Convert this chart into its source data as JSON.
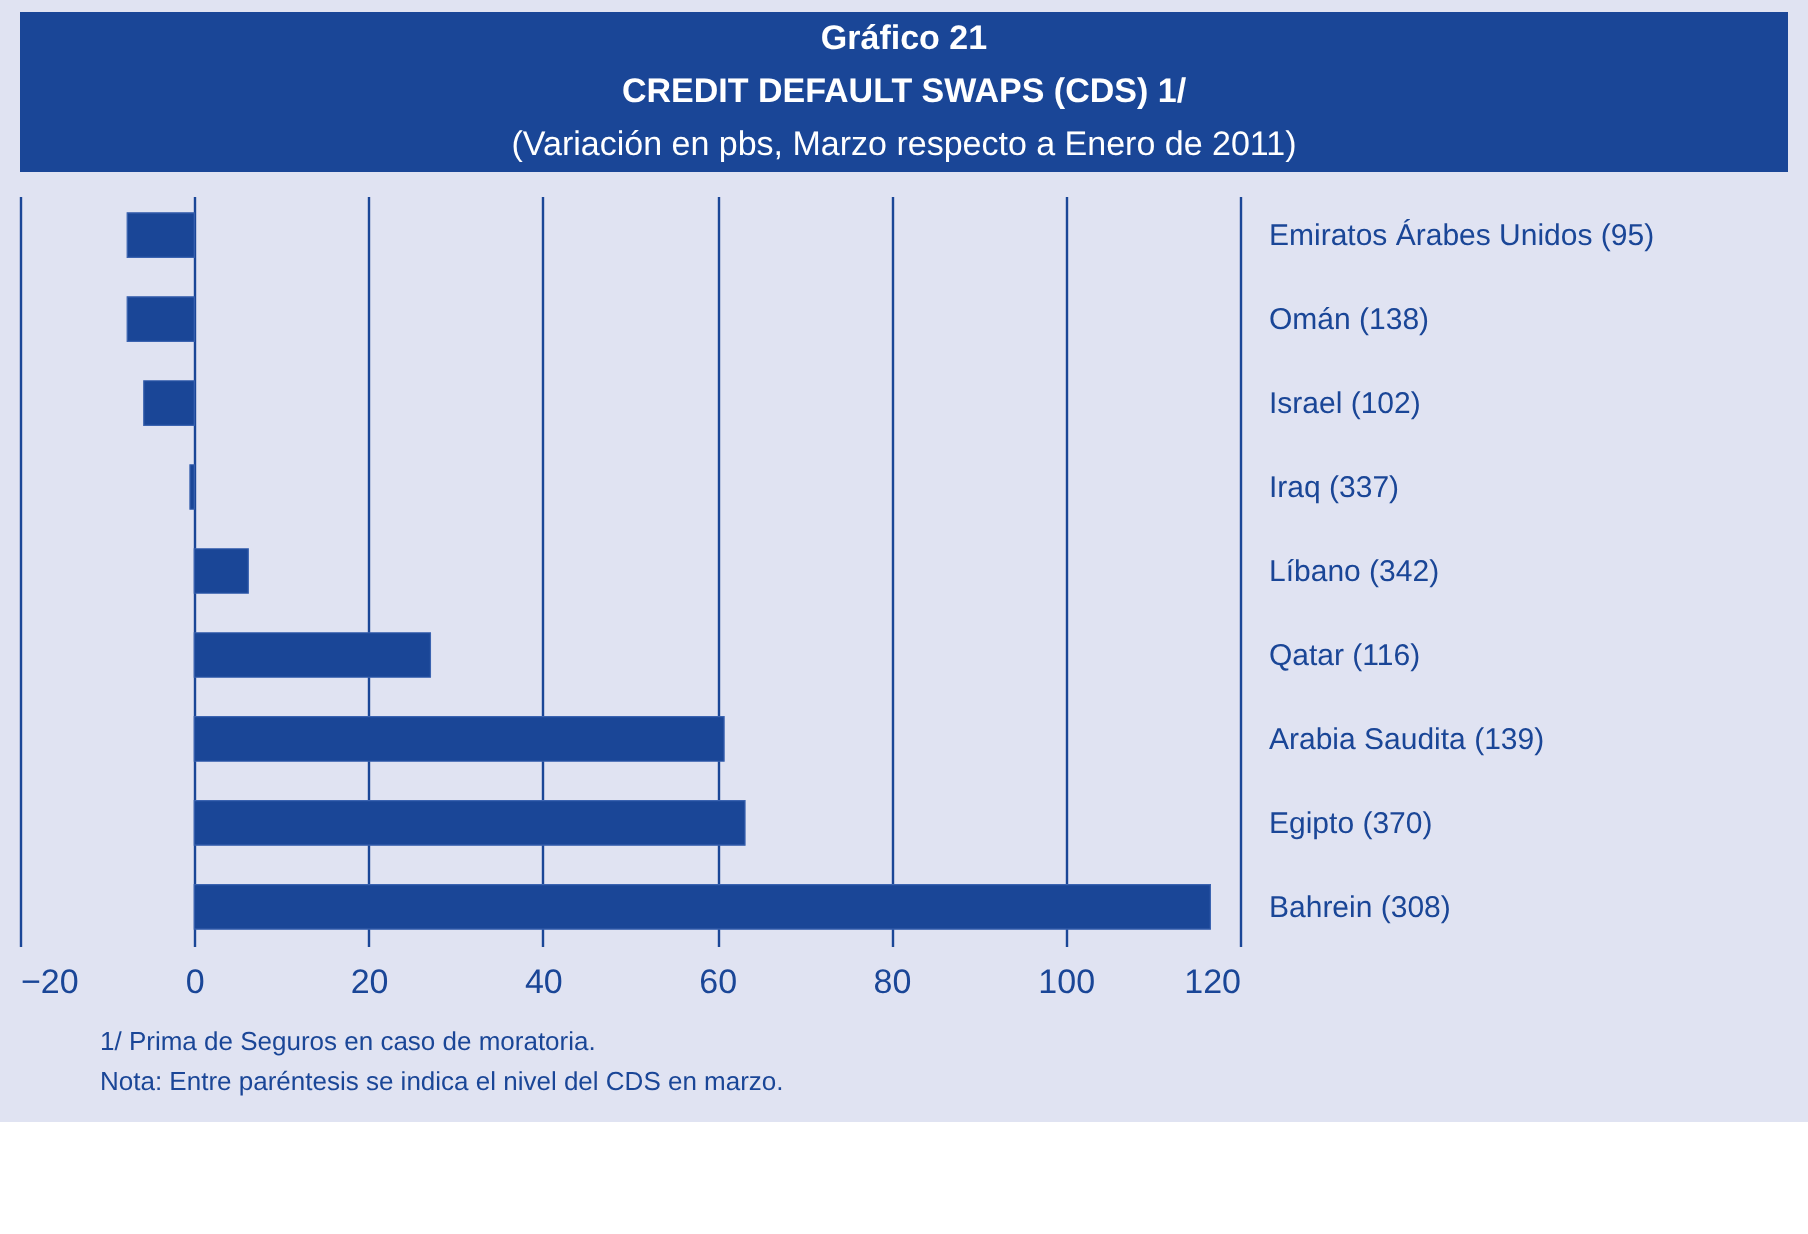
{
  "chart_data": {
    "type": "bar",
    "orientation": "horizontal",
    "title": "Gráfico 21\nCREDIT DEFAULT SWAPS (CDS) 1/",
    "subtitle": "(Variación en pbs, Marzo respecto a Enero de 2011)",
    "categories": [
      "Emiratos Árabes Unidos (95)",
      "Omán (138)",
      "Israel (102)",
      "Iraq (337)",
      "Líbano (342)",
      "Qatar (116)",
      "Arabia Saudita (139)",
      "Egipto (370)",
      "Bahrein (308)"
    ],
    "values": [
      -7.7,
      -7.7,
      -5.8,
      -0.5,
      6.2,
      27.1,
      60.8,
      63.2,
      116.6
    ],
    "color": "#1a4697",
    "xlim": [
      -20,
      120
    ],
    "xticks": [
      -20,
      0,
      20,
      40,
      60,
      80,
      100,
      120
    ],
    "grid": "x",
    "annotations": [
      "1/ Prima de Seguros en caso de moratoria.",
      "Nota: Entre paréntesis se indica el nivel del CDS en marzo."
    ]
  }
}
